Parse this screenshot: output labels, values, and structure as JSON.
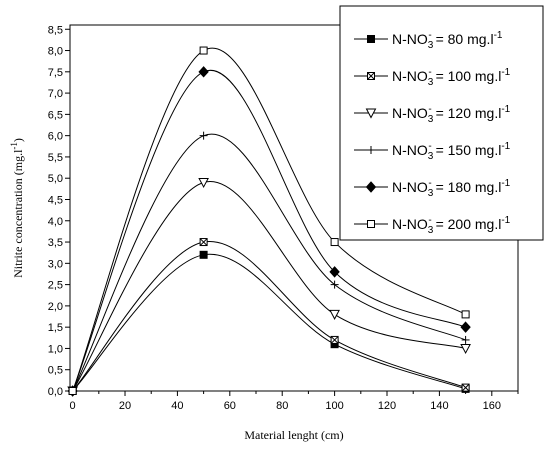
{
  "chart_data": {
    "type": "line",
    "xlabel": "Material lenght (cm)",
    "ylabel": "Nitrite concentration (mg.l",
    "ylabel_sup": "-1",
    "ylabel_end": ")",
    "xlim": [
      -1,
      170
    ],
    "ylim": [
      0,
      8.6
    ],
    "x_ticks": [
      "0",
      "20",
      "40",
      "60",
      "80",
      "100",
      "120",
      "140",
      "160"
    ],
    "y_ticks": [
      "0,0",
      "0,5",
      "1,0",
      "1,5",
      "2,0",
      "2,5",
      "3,0",
      "3,5",
      "4,0",
      "4,5",
      "5,0",
      "5,5",
      "6,0",
      "6,5",
      "7,0",
      "7,5",
      "8,0",
      "8,5"
    ],
    "x": [
      0,
      50,
      100,
      150
    ],
    "series": [
      {
        "legend_prefix": "N-NO",
        "legend_sub": "3",
        "legend_sup1": "-",
        "legend_value": " = 80 mg.l",
        "legend_sup2": "-1",
        "marker": "filled-square",
        "values": [
          0,
          3.2,
          1.1,
          0.05
        ]
      },
      {
        "legend_prefix": "N-NO",
        "legend_sub": "3",
        "legend_sup1": "-",
        "legend_value": " = 100 mg.l",
        "legend_sup2": "-1",
        "marker": "crossed-square",
        "values": [
          0,
          3.5,
          1.2,
          0.08
        ]
      },
      {
        "legend_prefix": "N-NO",
        "legend_sub": "3",
        "legend_sup1": "-",
        "legend_value": " = 120 mg.l",
        "legend_sup2": "-1",
        "marker": "open-triangle-down",
        "values": [
          0,
          4.9,
          1.8,
          1.0
        ]
      },
      {
        "legend_prefix": "N-NO",
        "legend_sub": "3",
        "legend_sup1": "-",
        "legend_value": " = 150 mg.l",
        "legend_sup2": "-1",
        "marker": "plus",
        "values": [
          0,
          6.0,
          2.5,
          1.2
        ]
      },
      {
        "legend_prefix": "N-NO",
        "legend_sub": "3",
        "legend_sup1": "-",
        "legend_value": " = 180 mg.l",
        "legend_sup2": "-1",
        "marker": "filled-diamond",
        "values": [
          0,
          7.5,
          2.8,
          1.5
        ]
      },
      {
        "legend_prefix": "N-NO",
        "legend_sub": "3",
        "legend_sup1": "-",
        "legend_value": " = 200 mg.l",
        "legend_sup2": "-1",
        "marker": "open-square",
        "values": [
          0,
          8.0,
          3.5,
          1.8
        ]
      }
    ],
    "legend_position": "top-right",
    "grid": false,
    "line_color": "#000000"
  }
}
